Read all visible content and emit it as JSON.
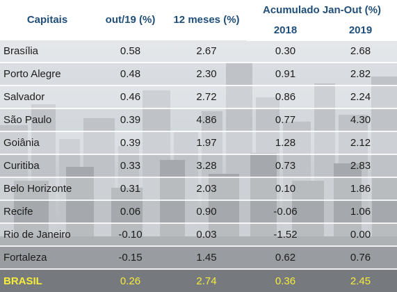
{
  "colors": {
    "header_text": "#1f4e79",
    "body_text": "#1c1c1c",
    "total_text": "#f6ec3a"
  },
  "table": {
    "headers": {
      "capitais": "Capitais",
      "out19": "out/19 (%)",
      "doze_meses": "12 meses (%)",
      "acumulado": "Acumulado Jan-Out (%)",
      "y2018": "2018",
      "y2019": "2019"
    },
    "rows": [
      [
        "Brasília",
        "0.58",
        "2.67",
        "0.30",
        "2.68"
      ],
      [
        "Porto Alegre",
        "0.48",
        "2.30",
        "0.91",
        "2.82"
      ],
      [
        "Salvador",
        "0.46",
        "2.72",
        "0.86",
        "2.24"
      ],
      [
        "São Paulo",
        "0.39",
        "4.86",
        "0.77",
        "4.30"
      ],
      [
        "Goiânia",
        "0.39",
        "1.97",
        "1.28",
        "2.12"
      ],
      [
        "Curitiba",
        "0.33",
        "3.28",
        "0.73",
        "2.83"
      ],
      [
        "Belo Horizonte",
        "0.31",
        "2.03",
        "0.10",
        "1.86"
      ],
      [
        "Recife",
        "0.06",
        "0.90",
        "-0.06",
        "1.06"
      ],
      [
        "Rio de Janeiro",
        "-0.10",
        "0.03",
        "-1.52",
        "0.00"
      ],
      [
        "Fortaleza",
        "-0.15",
        "1.45",
        "0.62",
        "0.76"
      ]
    ],
    "total": [
      "BRASIL",
      "0.26",
      "2.74",
      "0.36",
      "2.45"
    ]
  }
}
